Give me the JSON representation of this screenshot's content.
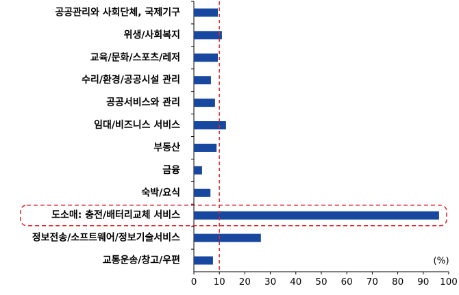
{
  "chart_data": {
    "type": "barh",
    "categories": [
      "공공관리와 사회단체, 국제기구",
      "위생/사회복지",
      "교육/문화/스포츠/레저",
      "수리/환경/공공시설 관리",
      "공공서비스와 관리",
      "임대/비즈니스 서비스",
      "부동산",
      "금융",
      "숙박/요식",
      "도소매: 충전/배터리교체 서비스",
      "정보전송/소프트웨어/정보기술서비스",
      "교통운송/창고/우편"
    ],
    "values": [
      9.4,
      11,
      9.4,
      6.7,
      8.3,
      12.6,
      8.9,
      3.2,
      6.5,
      96.2,
      26.3,
      7.5
    ],
    "color": "#17479e",
    "xlim": [
      0,
      100
    ],
    "xticks": [
      0,
      10,
      20,
      30,
      40,
      50,
      60,
      70,
      80,
      90,
      100
    ],
    "unit_label": "(%)",
    "reference_line": 10,
    "reference_color": "#d9252b",
    "highlight": 9
  }
}
